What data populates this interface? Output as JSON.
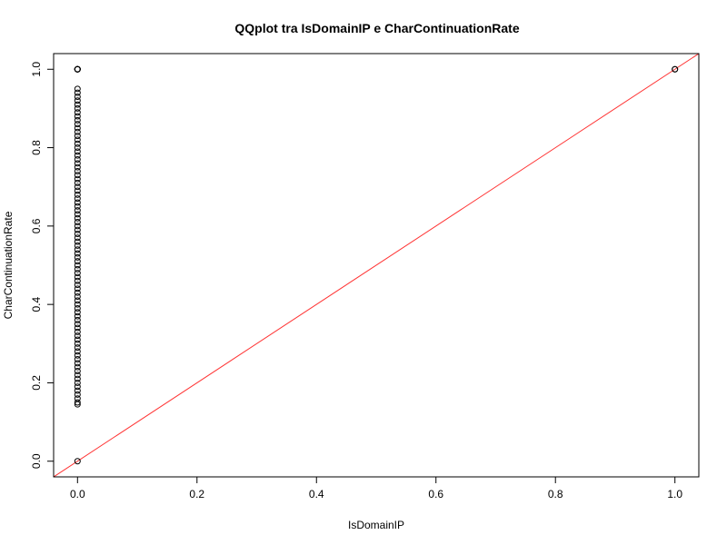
{
  "chart_data": {
    "type": "scatter",
    "title": "QQplot tra IsDomainIP e CharContinuationRate",
    "xlabel": "IsDomainIP",
    "ylabel": "CharContinuationRate",
    "xlim": [
      -0.04,
      1.04
    ],
    "ylim": [
      -0.04,
      1.04
    ],
    "x_ticks": [
      0.0,
      0.2,
      0.4,
      0.6,
      0.8,
      1.0
    ],
    "x_tick_labels": [
      "0.0",
      "0.2",
      "0.4",
      "0.6",
      "0.8",
      "1.0"
    ],
    "y_ticks": [
      0.0,
      0.2,
      0.4,
      0.6,
      0.8,
      1.0
    ],
    "y_tick_labels": [
      "0.0",
      "0.2",
      "0.4",
      "0.6",
      "0.8",
      "1.0"
    ],
    "grid": false,
    "legend": "none",
    "point_color": "#000000",
    "reference_line": {
      "x": [
        -0.04,
        1.04
      ],
      "y": [
        -0.04,
        1.04
      ],
      "color": "#ff3333"
    },
    "points": {
      "x": [
        0,
        0,
        0,
        0,
        0,
        0,
        0,
        0,
        0,
        0,
        0,
        0,
        0,
        0,
        0,
        0,
        0,
        0,
        0,
        0,
        0,
        0,
        0,
        0,
        0,
        0,
        0,
        0,
        0,
        0,
        0,
        0,
        0,
        0,
        0,
        0,
        0,
        0,
        0,
        0,
        0,
        0,
        0,
        0,
        0,
        0,
        0,
        0,
        0,
        0,
        0,
        0,
        0,
        0,
        0,
        0,
        0,
        0,
        0,
        0,
        0,
        0,
        0,
        0,
        0,
        0,
        0,
        0,
        0,
        0,
        0,
        0,
        0,
        0,
        0,
        0,
        0,
        0,
        0,
        0,
        0,
        0,
        0,
        0,
        0,
        0,
        0,
        0,
        0,
        1,
        1
      ],
      "y": [
        0.0,
        0.145,
        0.15,
        0.16,
        0.17,
        0.18,
        0.19,
        0.2,
        0.21,
        0.22,
        0.23,
        0.24,
        0.25,
        0.26,
        0.27,
        0.28,
        0.29,
        0.3,
        0.31,
        0.32,
        0.33,
        0.34,
        0.35,
        0.36,
        0.37,
        0.38,
        0.39,
        0.4,
        0.41,
        0.42,
        0.43,
        0.44,
        0.45,
        0.46,
        0.47,
        0.48,
        0.49,
        0.5,
        0.51,
        0.52,
        0.53,
        0.54,
        0.55,
        0.56,
        0.57,
        0.58,
        0.59,
        0.6,
        0.61,
        0.62,
        0.63,
        0.64,
        0.65,
        0.66,
        0.67,
        0.68,
        0.69,
        0.7,
        0.71,
        0.72,
        0.73,
        0.74,
        0.75,
        0.76,
        0.77,
        0.78,
        0.79,
        0.8,
        0.81,
        0.82,
        0.83,
        0.84,
        0.85,
        0.86,
        0.87,
        0.88,
        0.89,
        0.9,
        0.91,
        0.92,
        0.93,
        0.94,
        0.95,
        1.0,
        1.0,
        1.0,
        1.0,
        1.0,
        1.0,
        1.0,
        1.0
      ]
    }
  }
}
